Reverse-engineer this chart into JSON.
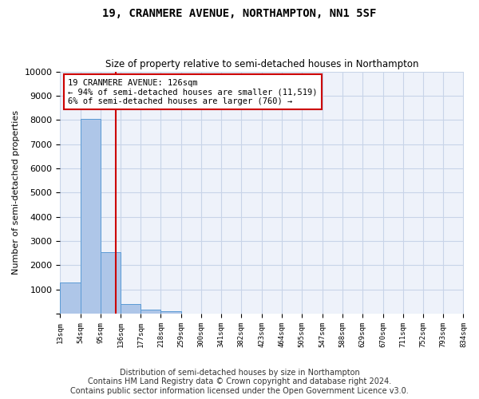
{
  "title": "19, CRANMERE AVENUE, NORTHAMPTON, NN1 5SF",
  "subtitle": "Size of property relative to semi-detached houses in Northampton",
  "xlabel_bottom": "Distribution of semi-detached houses by size in Northampton",
  "ylabel": "Number of semi-detached properties",
  "footnote": "Contains HM Land Registry data © Crown copyright and database right 2024.\nContains public sector information licensed under the Open Government Licence v3.0.",
  "property_label": "19 CRANMERE AVENUE: 126sqm",
  "annotation_smaller": "← 94% of semi-detached houses are smaller (11,519)",
  "annotation_larger": "6% of semi-detached houses are larger (760) →",
  "property_size": 126,
  "bin_edges": [
    13,
    54,
    95,
    136,
    177,
    218,
    259,
    300,
    341,
    382,
    423,
    464,
    505,
    547,
    588,
    629,
    670,
    711,
    752,
    793,
    834
  ],
  "bar_values": [
    1300,
    8050,
    2550,
    380,
    150,
    100,
    0,
    0,
    0,
    0,
    0,
    0,
    0,
    0,
    0,
    0,
    0,
    0,
    0,
    0
  ],
  "tick_labels": [
    "13sqm",
    "54sqm",
    "95sqm",
    "136sqm",
    "177sqm",
    "218sqm",
    "259sqm",
    "300sqm",
    "341sqm",
    "382sqm",
    "423sqm",
    "464sqm",
    "505sqm",
    "547sqm",
    "588sqm",
    "629sqm",
    "670sqm",
    "711sqm",
    "752sqm",
    "793sqm",
    "834sqm"
  ],
  "bar_color": "#aec6e8",
  "bar_edge_color": "#5b9bd5",
  "vline_color": "#cc0000",
  "annotation_box_color": "#cc0000",
  "grid_color": "#c8d4e8",
  "bg_color": "#eef2fa",
  "ylim": [
    0,
    10000
  ],
  "yticks": [
    0,
    1000,
    2000,
    3000,
    4000,
    5000,
    6000,
    7000,
    8000,
    9000,
    10000
  ]
}
